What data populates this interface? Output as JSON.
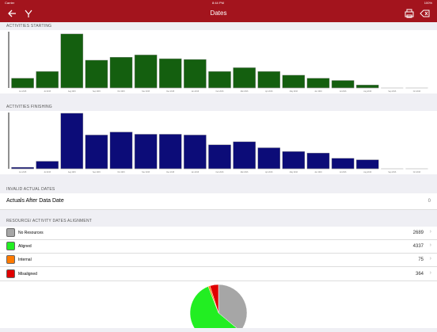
{
  "status_bar": {
    "left": "Carrier",
    "time": "8:44 PM",
    "battery": "100%"
  },
  "nav": {
    "title": "Dates"
  },
  "sections": {
    "starting": "ACTIVITIES STARTING",
    "finishing": "ACTIVITIES FINISHING",
    "invalid": "INVALID ACTUAL DATES",
    "alignment": "RESOURCE/ ACTIVITY DATES ALIGNMENT"
  },
  "actuals_after": {
    "label": "Actuals After Data Date",
    "value": "0"
  },
  "alignment_rows": [
    {
      "label": "No Resources",
      "value": "2689",
      "color": "#a6a6a6"
    },
    {
      "label": "Aligned",
      "value": "4337",
      "color": "#22ee22"
    },
    {
      "label": "Internal",
      "value": "75",
      "color": "#ff7a00"
    },
    {
      "label": "Misaligned",
      "value": "364",
      "color": "#e00000"
    }
  ],
  "colors": {
    "nav": "#a3141d",
    "starting_bar": "#145f0f",
    "finishing_bar": "#0c0c78"
  },
  "chart_data": [
    {
      "type": "bar",
      "name": "activities-starting",
      "categories": [
        "Jun 2015",
        "Jul 2015",
        "Aug 2015",
        "Sep 2015",
        "Oct 2015",
        "Nov 2015",
        "Dec 2015",
        "Jan 2016",
        "Feb 2016",
        "Mar 2016",
        "Apr 2016",
        "May 2016",
        "Jun 2016",
        "Jul 2016",
        "Aug 2016",
        "Sep 2016",
        "Oct 2016"
      ],
      "values": [
        13,
        22,
        72,
        37,
        41,
        44,
        39,
        38,
        22,
        27,
        22,
        17,
        13,
        10,
        4,
        0,
        0
      ],
      "ylim": [
        0,
        75
      ]
    },
    {
      "type": "bar",
      "name": "activities-finishing",
      "categories": [
        "Jun 2015",
        "Jul 2015",
        "Aug 2015",
        "Sep 2015",
        "Oct 2015",
        "Nov 2015",
        "Dec 2015",
        "Jan 2016",
        "Feb 2016",
        "Mar 2016",
        "Apr 2016",
        "May 2016",
        "Jun 2016",
        "Jul 2016",
        "Aug 2016",
        "Sep 2016",
        "Oct 2016"
      ],
      "values": [
        2,
        10,
        74,
        45,
        49,
        46,
        46,
        45,
        32,
        36,
        28,
        23,
        21,
        14,
        12,
        0,
        0
      ],
      "ylim": [
        0,
        75
      ]
    },
    {
      "type": "pie",
      "name": "resource-alignment",
      "categories": [
        "No Resources",
        "Aligned",
        "Internal",
        "Misaligned"
      ],
      "values": [
        2689,
        4337,
        75,
        364
      ]
    }
  ]
}
